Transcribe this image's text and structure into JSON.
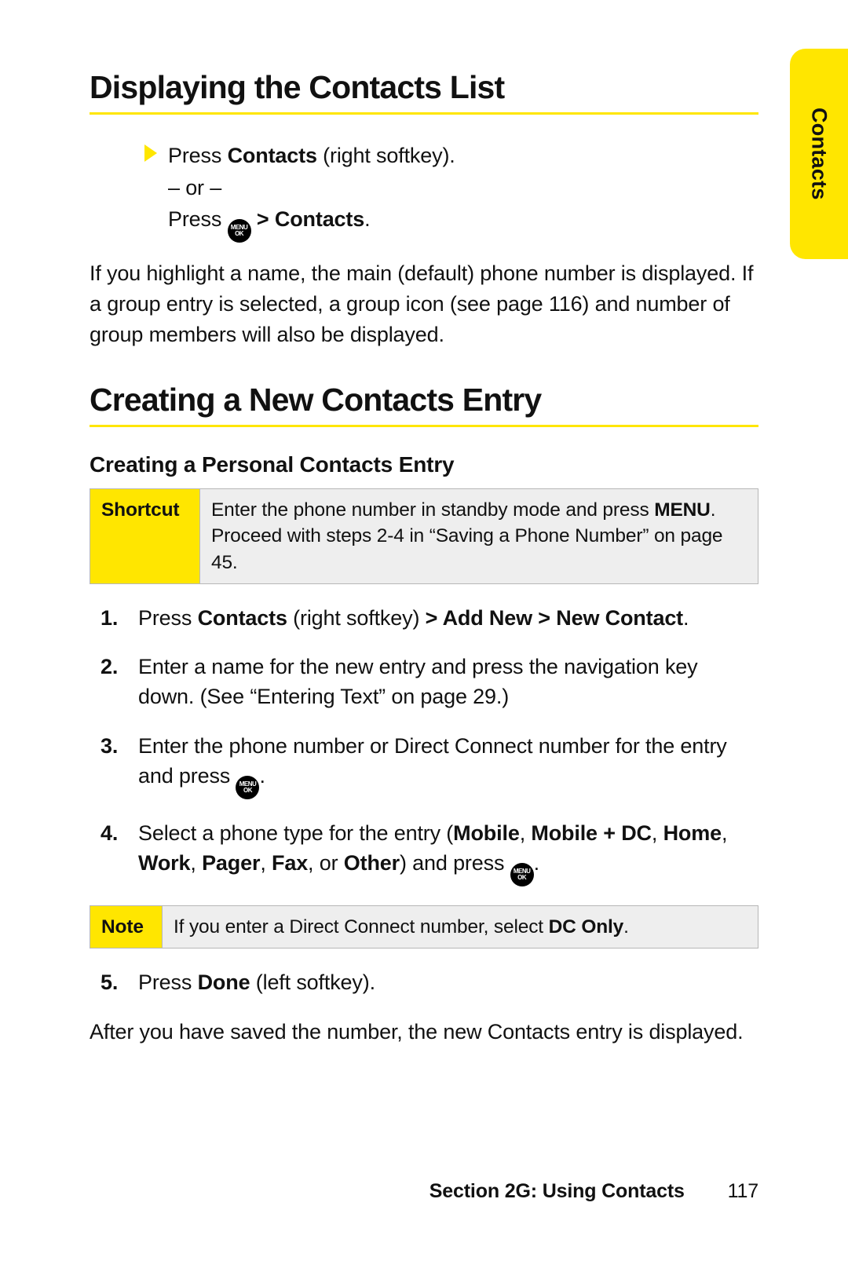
{
  "colors": {
    "accent": "#ffe600",
    "callout_bg": "#eeeeee",
    "border": "#b7b7b7",
    "text": "#111111",
    "page_bg": "#ffffff"
  },
  "side_tab": {
    "label": "Contacts"
  },
  "headings": {
    "h1a": "Displaying the Contacts List",
    "h1b": "Creating a New Contacts Entry",
    "h2a": "Creating a Personal Contacts Entry"
  },
  "bullet": {
    "l1_pre": "Press ",
    "l1_b": "Contacts",
    "l1_post": " (right softkey).",
    "l2": "– or –",
    "l3_pre": "Press ",
    "l3_post_pre": " > ",
    "l3_b": "Contacts",
    "l3_end": "."
  },
  "menu_key": {
    "top": "MENU",
    "bottom": "OK"
  },
  "para1": "If you highlight a name, the main (default) phone number is displayed. If a group entry is selected, a group icon (see page 116) and number of group members will also be displayed.",
  "shortcut": {
    "label": "Shortcut",
    "t_pre": "Enter the phone number in standby mode and press ",
    "t_b": "MENU",
    "t_post": ". Proceed with steps 2-4 in “Saving a Phone Number” on page 45."
  },
  "steps": {
    "s1_pre": "Press ",
    "s1_b1": "Contacts",
    "s1_mid": " (right softkey) ",
    "s1_b2": "> Add New > New Contact",
    "s1_end": ".",
    "s2": "Enter a name for the new entry and press the navigation key down. (See “Entering Text” on page 29.)",
    "s3_pre": "Enter the phone number or Direct Connect number for the entry and press ",
    "s3_end": ".",
    "s4_pre": "Select a phone type for the entry (",
    "s4_b1": "Mobile",
    "s4_c1": ", ",
    "s4_b2": "Mobile + DC",
    "s4_c2": ", ",
    "s4_b3": "Home",
    "s4_c3": ", ",
    "s4_b4": "Work",
    "s4_c4": ", ",
    "s4_b5": "Pager",
    "s4_c5": ", ",
    "s4_b6": "Fax",
    "s4_c6": ", or ",
    "s4_b7": "Other",
    "s4_post": ") and press ",
    "s4_end": ".",
    "s5_pre": "Press ",
    "s5_b": "Done",
    "s5_post": " (left softkey)."
  },
  "note": {
    "label": "Note",
    "t_pre": "If you enter a Direct Connect number, select ",
    "t_b": "DC Only",
    "t_end": "."
  },
  "closing": "After you have saved the number, the new Contacts entry is displayed.",
  "footer": {
    "section": "Section 2G: Using Contacts",
    "page": "117"
  }
}
